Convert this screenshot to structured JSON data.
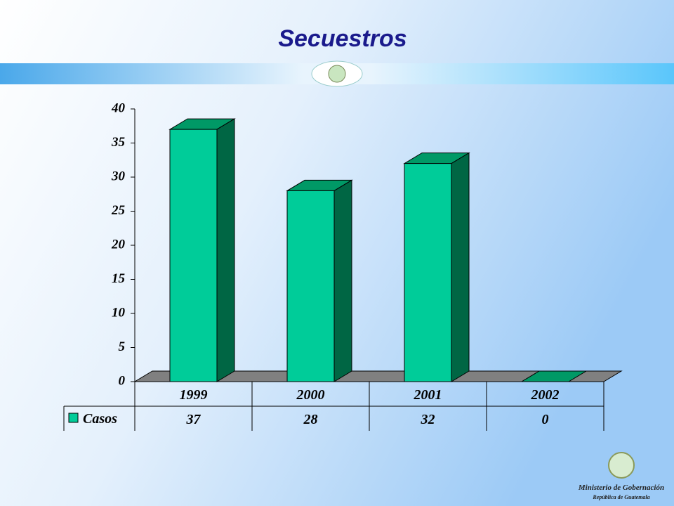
{
  "chart_data": {
    "type": "bar3d",
    "title": "Secuestros",
    "categories": [
      "1999",
      "2000",
      "2001",
      "2002"
    ],
    "series": [
      {
        "name": "Casos",
        "color": "#00cc99",
        "values": [
          37,
          28,
          32,
          0
        ]
      }
    ],
    "ylim": [
      0,
      40
    ],
    "yticks": [
      0,
      5,
      10,
      15,
      20,
      25,
      30,
      35,
      40
    ],
    "grid": false,
    "data_table": true
  },
  "footer": {
    "organization": "Ministerio de Gobernación",
    "country": "República de Guatemala"
  }
}
